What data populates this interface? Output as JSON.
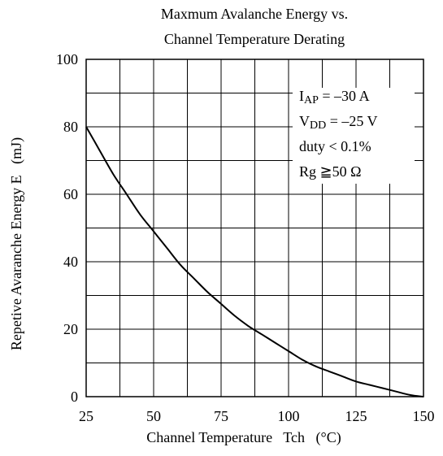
{
  "chart_data": {
    "type": "line",
    "title_lines": [
      "Maxmum Avalanche Energy vs.",
      "Channel Temperature Derating"
    ],
    "xlabel": "Channel Temperature   Tch   (°C)",
    "ylabel": "Repetive Avaranche Energy E   (mJ)",
    "xlim": [
      25,
      150
    ],
    "ylim": [
      0,
      100
    ],
    "x_ticks": [
      25,
      50,
      75,
      100,
      125,
      150
    ],
    "y_ticks": [
      0,
      20,
      40,
      60,
      80,
      100
    ],
    "x_minor_step": 12.5,
    "y_minor_step": 10,
    "grid": true,
    "series": [
      {
        "x": [
          25,
          30,
          35,
          40,
          45,
          50,
          55,
          60,
          65,
          70,
          75,
          80,
          85,
          90,
          95,
          100,
          105,
          110,
          115,
          120,
          125,
          130,
          135,
          140,
          145,
          150
        ],
        "y": [
          80,
          73,
          66,
          60,
          54,
          49,
          44,
          39,
          35,
          31,
          27.5,
          24,
          21,
          18.5,
          16,
          13.5,
          11,
          9,
          7.5,
          6,
          4.5,
          3.5,
          2.5,
          1.5,
          0.5,
          0
        ]
      }
    ],
    "annotations": [
      {
        "main": "I",
        "sub": "AP",
        "rest": " = –30 A"
      },
      {
        "main": "V",
        "sub": "DD",
        "rest": " = –25 V"
      },
      {
        "main": "duty < 0.1%",
        "sub": "",
        "rest": ""
      },
      {
        "main": "Rg ≧50  Ω",
        "sub": "",
        "rest": ""
      }
    ],
    "colors": {
      "line": "#000000",
      "grid": "#000000",
      "background": "#ffffff"
    }
  }
}
